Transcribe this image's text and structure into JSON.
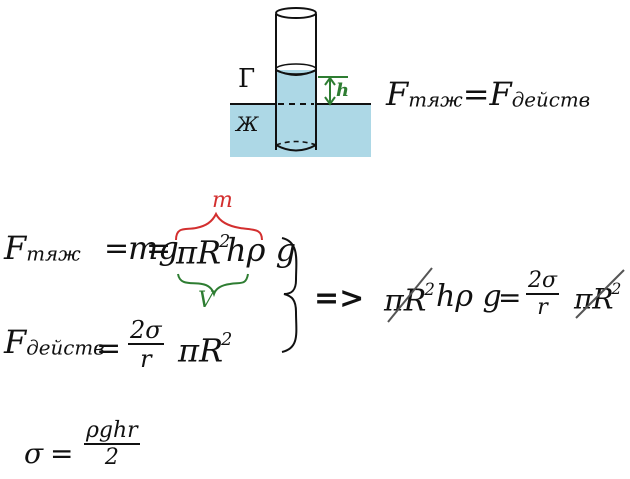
{
  "diagram": {
    "label_gas": "Г",
    "label_liquid": "Ж",
    "label_height": "h",
    "colors": {
      "liquid": "#add8e6",
      "height_marker": "#2e7d32",
      "ink": "#111111"
    }
  },
  "balance": {
    "left": "F",
    "left_sub": "тяж",
    "equals": "=",
    "right": "F",
    "right_sub": "действ"
  },
  "gravity": {
    "lhs": "F",
    "lhs_sub": "тяж",
    "eq1": "=",
    "mg": "mg",
    "eq2": "=",
    "pi_r": "πR",
    "power": "2",
    "rest": "hρ g",
    "brace_top_label": "m",
    "brace_bottom_label": "V",
    "colors": {
      "brace_top": "#d32f2f",
      "brace_bottom": "#2e7d32"
    }
  },
  "surface": {
    "lhs": "F",
    "lhs_sub": "действ",
    "eq": "=",
    "num": "2σ",
    "den": "r",
    "pi_r": "πR",
    "power": "2"
  },
  "result": {
    "implies": "=>",
    "pi_r_left": "πR",
    "power_left": "2",
    "mid": "hρ g",
    "eq": "=",
    "num": "2σ",
    "den": "r",
    "pi_r_right": "πR",
    "power_right": "2"
  },
  "final": {
    "lhs": "σ",
    "eq": "=",
    "num": "ρghr",
    "den": "2"
  }
}
